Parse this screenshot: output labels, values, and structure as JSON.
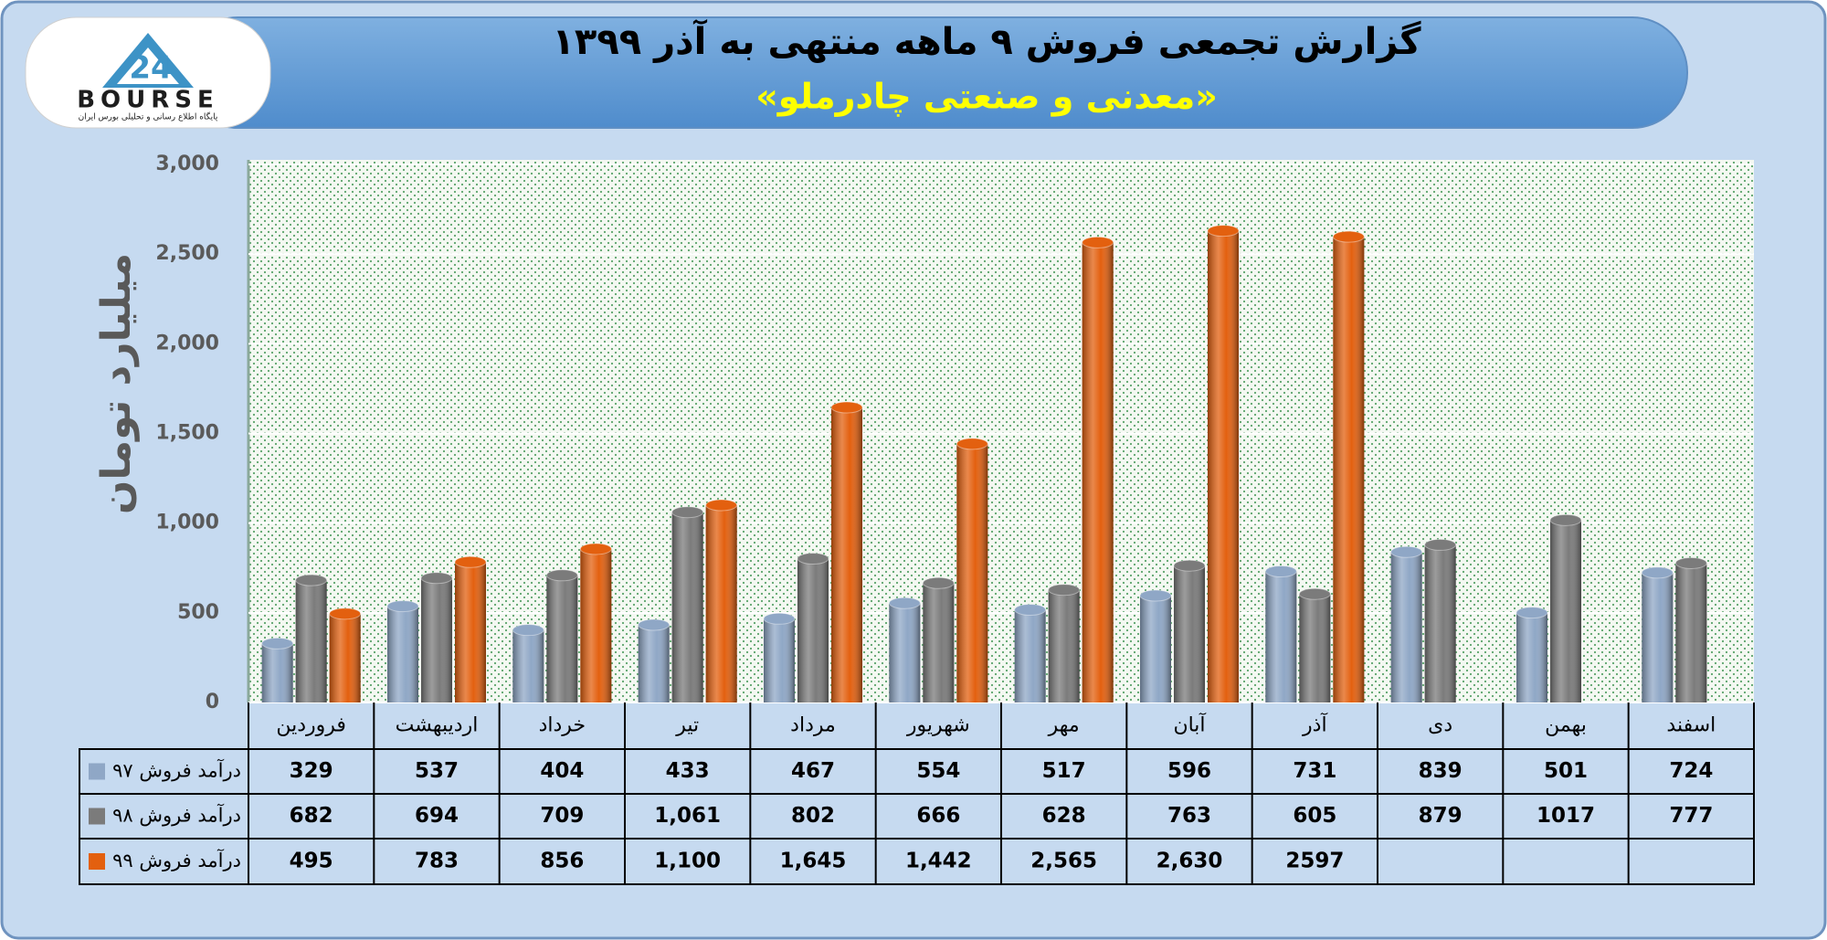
{
  "logo": {
    "name": "BOURSE",
    "tagline": "پایگاه اطلاع رسانی و تحلیلی بورس ایران"
  },
  "chart_data": {
    "type": "bar",
    "title": "گزارش تجمعی فروش ۹ ماهه منتهی به آذر ۱۳۹۹",
    "subtitle": "«معدنی و صنعتی چادرملو»",
    "y_label": "میلیارد تومان",
    "categories": [
      "فروردین",
      "اردیبهشت",
      "خرداد",
      "تیر",
      "مرداد",
      "شهریور",
      "مهر",
      "آبان",
      "آذر",
      "دی",
      "بهمن",
      "اسفند"
    ],
    "series": [
      {
        "name": "درآمد فروش ۹۷",
        "color": "#8fa7c6",
        "values": [
          329,
          537,
          404,
          433,
          467,
          554,
          517,
          596,
          731,
          839,
          501,
          724
        ],
        "value_labels": [
          "329",
          "537",
          "404",
          "433",
          "467",
          "554",
          "517",
          "596",
          "731",
          "839",
          "501",
          "724"
        ]
      },
      {
        "name": "درآمد فروش ۹۸",
        "color": "#7b7b7b",
        "values": [
          682,
          694,
          709,
          1061,
          802,
          666,
          628,
          763,
          605,
          879,
          1017,
          777
        ],
        "value_labels": [
          "682",
          "694",
          "709",
          "1,061",
          "802",
          "666",
          "628",
          "763",
          "605",
          "879",
          "1017",
          "777"
        ]
      },
      {
        "name": "درآمد فروش ۹۹",
        "color": "#e3600f",
        "values": [
          495,
          783,
          856,
          1100,
          1645,
          1442,
          2565,
          2630,
          2597,
          null,
          null,
          null
        ],
        "value_labels": [
          "495",
          "783",
          "856",
          "1,100",
          "1,645",
          "1,442",
          "2,565",
          "2,630",
          "2597",
          null,
          null,
          null
        ]
      }
    ],
    "ylim": [
      0,
      3000
    ],
    "yticks": [
      0,
      500,
      {
        "value": 1000,
        "label": "1,000"
      },
      {
        "value": 1500,
        "label": "1,500"
      },
      {
        "value": 2000,
        "label": "2,000"
      },
      {
        "value": 2500,
        "label": "2,500"
      },
      {
        "value": 3000,
        "label": "3,000"
      }
    ],
    "grid": true
  }
}
